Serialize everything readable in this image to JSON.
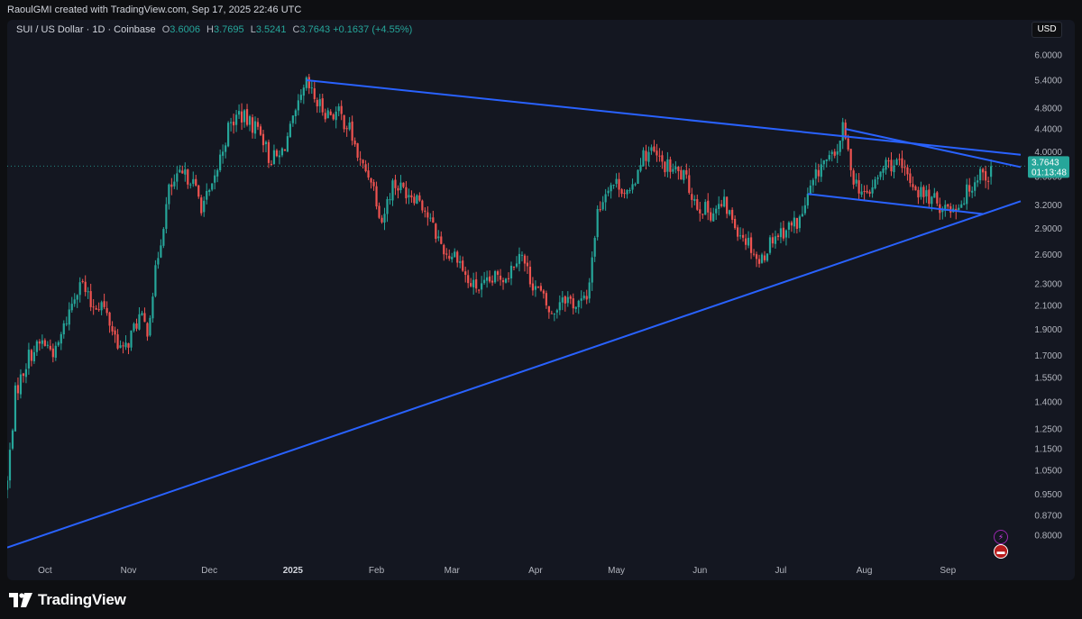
{
  "header": {
    "meta": "RaoulGMI created with TradingView.com, Sep 17, 2025 22:46 UTC"
  },
  "legend": {
    "symbol": "SUI / US Dollar · 1D · Coinbase",
    "o_label": "O",
    "o_value": "3.6006",
    "h_label": "H",
    "h_value": "3.7695",
    "l_label": "L",
    "l_value": "3.5241",
    "c_label": "C",
    "c_value": "3.7643",
    "change": "+0.1637 (+4.55%)"
  },
  "currency": "USD",
  "price_label": {
    "price": "3.7643",
    "countdown": "01:13:48"
  },
  "footer": {
    "brand": "TradingView"
  },
  "colors": {
    "up": "#26a69a",
    "down": "#ef5350",
    "trendline": "#2962ff",
    "background": "#141721",
    "axis_text": "#b2b5be"
  },
  "icons": [
    "lightning-icon",
    "us-flag-icon"
  ],
  "chart_data": {
    "type": "candlestick",
    "title": "",
    "y_scale": "log",
    "ylim": [
      0.72,
      6.8
    ],
    "y_ticks": [
      "6.0000",
      "5.4000",
      "4.8000",
      "4.4000",
      "4.0000",
      "3.6000",
      "3.2000",
      "2.9000",
      "2.6000",
      "2.3000",
      "2.1000",
      "1.9000",
      "1.7000",
      "1.5500",
      "1.4000",
      "1.2500",
      "1.1500",
      "1.0500",
      "0.9500",
      "0.8700",
      "0.8000"
    ],
    "x_ticks": [
      "Oct",
      "Nov",
      "Dec",
      "2025",
      "Feb",
      "Mar",
      "Apr",
      "May",
      "Jun",
      "Jul",
      "Aug",
      "Sep"
    ],
    "x_range": [
      "2024-09-17",
      "2025-09-28"
    ],
    "last_close": 3.7643,
    "close_series": [
      [
        "2024-09-17",
        1.0
      ],
      [
        "2024-09-20",
        1.45
      ],
      [
        "2024-09-25",
        1.7
      ],
      [
        "2024-09-30",
        1.8
      ],
      [
        "2024-10-05",
        1.72
      ],
      [
        "2024-10-10",
        2.05
      ],
      [
        "2024-10-14",
        2.35
      ],
      [
        "2024-10-18",
        2.1
      ],
      [
        "2024-10-22",
        2.12
      ],
      [
        "2024-10-27",
        1.85
      ],
      [
        "2024-10-30",
        1.72
      ],
      [
        "2024-11-05",
        2.0
      ],
      [
        "2024-11-08",
        1.9
      ],
      [
        "2024-11-12",
        2.6
      ],
      [
        "2024-11-16",
        3.4
      ],
      [
        "2024-11-20",
        3.6
      ],
      [
        "2024-11-24",
        3.6
      ],
      [
        "2024-11-28",
        3.2
      ],
      [
        "2024-12-02",
        3.4
      ],
      [
        "2024-12-05",
        3.9
      ],
      [
        "2024-12-08",
        4.4
      ],
      [
        "2024-12-12",
        4.7
      ],
      [
        "2024-12-16",
        4.5
      ],
      [
        "2024-12-20",
        4.4
      ],
      [
        "2024-12-23",
        3.9
      ],
      [
        "2024-12-27",
        3.9
      ],
      [
        "2025-01-01",
        4.5
      ],
      [
        "2025-01-06",
        5.3
      ],
      [
        "2025-01-10",
        4.9
      ],
      [
        "2025-01-14",
        4.7
      ],
      [
        "2025-01-18",
        4.7
      ],
      [
        "2025-01-22",
        4.4
      ],
      [
        "2025-01-26",
        3.8
      ],
      [
        "2025-01-30",
        3.6
      ],
      [
        "2025-02-03",
        3.0
      ],
      [
        "2025-02-07",
        3.5
      ],
      [
        "2025-02-12",
        3.4
      ],
      [
        "2025-02-17",
        3.3
      ],
      [
        "2025-02-22",
        2.9
      ],
      [
        "2025-02-27",
        2.6
      ],
      [
        "2025-03-03",
        2.6
      ],
      [
        "2025-03-07",
        2.3
      ],
      [
        "2025-03-12",
        2.25
      ],
      [
        "2025-03-17",
        2.35
      ],
      [
        "2025-03-22",
        2.4
      ],
      [
        "2025-03-26",
        2.65
      ],
      [
        "2025-03-30",
        2.35
      ],
      [
        "2025-04-03",
        2.2
      ],
      [
        "2025-04-07",
        2.0
      ],
      [
        "2025-04-11",
        2.2
      ],
      [
        "2025-04-16",
        2.1
      ],
      [
        "2025-04-20",
        2.15
      ],
      [
        "2025-04-24",
        3.1
      ],
      [
        "2025-04-28",
        3.5
      ],
      [
        "2025-05-02",
        3.5
      ],
      [
        "2025-05-06",
        3.3
      ],
      [
        "2025-05-10",
        3.9
      ],
      [
        "2025-05-14",
        4.0
      ],
      [
        "2025-05-18",
        3.8
      ],
      [
        "2025-05-22",
        3.7
      ],
      [
        "2025-05-26",
        3.6
      ],
      [
        "2025-05-31",
        3.2
      ],
      [
        "2025-06-05",
        3.1
      ],
      [
        "2025-06-10",
        3.2
      ],
      [
        "2025-06-15",
        2.9
      ],
      [
        "2025-06-20",
        2.7
      ],
      [
        "2025-06-23",
        2.5
      ],
      [
        "2025-06-28",
        2.8
      ],
      [
        "2025-07-03",
        2.9
      ],
      [
        "2025-07-08",
        3.0
      ],
      [
        "2025-07-12",
        3.4
      ],
      [
        "2025-07-16",
        3.8
      ],
      [
        "2025-07-21",
        3.9
      ],
      [
        "2025-07-24",
        4.4
      ],
      [
        "2025-07-28",
        3.6
      ],
      [
        "2025-08-01",
        3.3
      ],
      [
        "2025-08-05",
        3.5
      ],
      [
        "2025-08-09",
        3.8
      ],
      [
        "2025-08-13",
        3.8
      ],
      [
        "2025-08-17",
        3.6
      ],
      [
        "2025-08-21",
        3.4
      ],
      [
        "2025-08-25",
        3.3
      ],
      [
        "2025-08-29",
        3.2
      ],
      [
        "2025-09-02",
        3.15
      ],
      [
        "2025-09-06",
        3.25
      ],
      [
        "2025-09-10",
        3.5
      ],
      [
        "2025-09-13",
        3.7
      ],
      [
        "2025-09-16",
        3.6
      ],
      [
        "2025-09-17",
        3.7643
      ]
    ],
    "trendlines": [
      {
        "from": [
          "2024-09-17",
          0.76
        ],
        "to": [
          "2025-09-28",
          3.25
        ]
      },
      {
        "from": [
          "2025-01-06",
          5.4
        ],
        "to": [
          "2025-09-28",
          3.95
        ]
      },
      {
        "from": [
          "2025-07-25",
          4.4
        ],
        "to": [
          "2025-09-28",
          3.75
        ]
      },
      {
        "from": [
          "2025-07-11",
          3.35
        ],
        "to": [
          "2025-09-14",
          3.08
        ]
      }
    ]
  }
}
